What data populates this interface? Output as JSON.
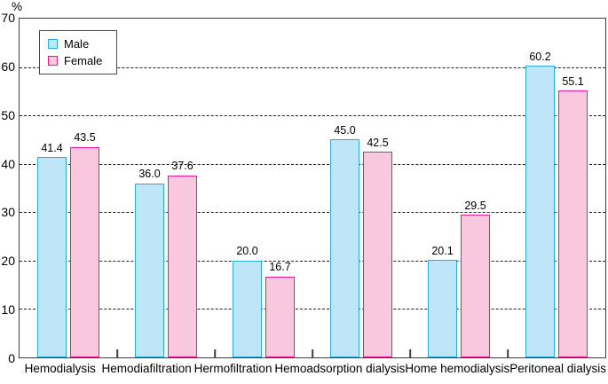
{
  "chart_data": {
    "type": "bar",
    "title": "",
    "xlabel": "",
    "ylabel": "%",
    "ylim": [
      0,
      70
    ],
    "ytick_step": 10,
    "yticks": [
      "0",
      "10",
      "20",
      "30",
      "40",
      "50",
      "60",
      "70"
    ],
    "grid": "horizontal-dashed",
    "legend_position": "top-left-inside",
    "value_labels": "one-decimal-above-bars",
    "categories": [
      "Hemodialysis",
      "Hemodiafiltration",
      "Hermofiltration",
      "Hemoadsorption dialysis",
      "Home hemodialysis",
      "Peritoneal dialysis"
    ],
    "series": [
      {
        "name": "Male",
        "values": [
          41.4,
          36.0,
          20.0,
          45.0,
          20.1,
          60.2
        ],
        "fill": "#BFE5F8",
        "border": "#29ABE2"
      },
      {
        "name": "Female",
        "values": [
          43.5,
          37.6,
          16.7,
          42.5,
          29.5,
          55.1
        ],
        "fill": "#F8C9DE",
        "border": "#EC168C"
      }
    ]
  },
  "colors": {
    "grid": "#1f1f1f",
    "axis_border": "#3d3d3d",
    "background": "#ffffff",
    "text": "#000000"
  }
}
